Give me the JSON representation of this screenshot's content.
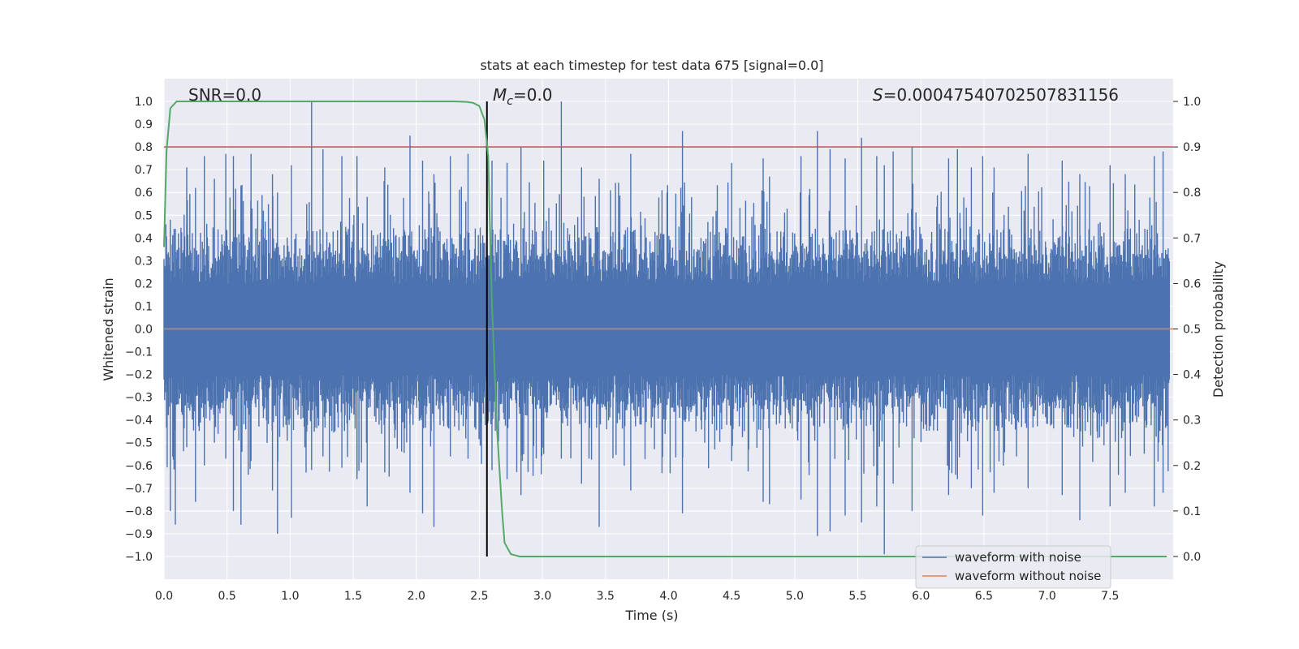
{
  "chart_data": {
    "type": "line",
    "title": "stats at each timestep for test data 675 [signal=0.0]",
    "xlabel": "Time (s)",
    "ylabel": "Whitened strain",
    "y2label": "Detection probability",
    "xlim": [
      0.0,
      8.0
    ],
    "ylim": [
      -1.1,
      1.1
    ],
    "y2lim": [
      -0.05,
      1.05
    ],
    "x_ticks": [
      "0.0",
      "0.5",
      "1.0",
      "1.5",
      "2.0",
      "2.5",
      "3.0",
      "3.5",
      "4.0",
      "4.5",
      "5.0",
      "5.5",
      "6.0",
      "6.5",
      "7.0",
      "7.5"
    ],
    "y_ticks": [
      "1.0",
      "0.9",
      "0.8",
      "0.7",
      "0.6",
      "0.5",
      "0.4",
      "0.3",
      "0.2",
      "0.1",
      "0.0",
      "−0.1",
      "−0.2",
      "−0.3",
      "−0.4",
      "−0.5",
      "−0.6",
      "−0.7",
      "−0.8",
      "−0.9",
      "−1.0"
    ],
    "y2_ticks": [
      "1.0",
      "0.9",
      "0.8",
      "0.7",
      "0.6",
      "0.5",
      "0.4",
      "0.3",
      "0.2",
      "0.1",
      "0.0"
    ],
    "grid": true,
    "legend_position": "lower-right",
    "annotations": {
      "snr": "SNR=0.0",
      "mc_symbol": "M",
      "mc_subscript": "c",
      "mc_value": "=0.0",
      "s_symbol": "S",
      "s_value": "=0.00047540702507831156"
    },
    "threshold_line": {
      "y": 0.8,
      "color": "#c44e52"
    },
    "event_line": {
      "x": 2.56,
      "color": "#000000"
    },
    "series": [
      {
        "name": "waveform with noise",
        "color": "#4c72b0",
        "axis": "left",
        "description_points": [
          [
            0.05,
            0.48,
            -0.8
          ],
          [
            0.09,
            0.44,
            -0.86
          ],
          [
            0.18,
            0.71,
            -0.52
          ],
          [
            0.25,
            0.62,
            -0.76
          ],
          [
            0.32,
            0.76,
            -0.6
          ],
          [
            0.4,
            0.66,
            -0.5
          ],
          [
            0.49,
            0.77,
            -0.57
          ],
          [
            0.55,
            0.76,
            -0.8
          ],
          [
            0.61,
            0.63,
            -0.86
          ],
          [
            0.69,
            0.77,
            -0.58
          ],
          [
            0.86,
            0.68,
            -0.71
          ],
          [
            0.9,
            0.6,
            -0.9
          ],
          [
            1.01,
            0.72,
            -0.83
          ],
          [
            1.17,
            1.0,
            -0.62
          ],
          [
            1.26,
            0.79,
            -0.56
          ],
          [
            1.41,
            0.76,
            -0.61
          ],
          [
            1.53,
            0.76,
            -0.66
          ],
          [
            1.61,
            0.58,
            -0.78
          ],
          [
            1.75,
            0.71,
            -0.63
          ],
          [
            1.95,
            0.85,
            -0.72
          ],
          [
            2.05,
            0.74,
            -0.81
          ],
          [
            2.14,
            0.68,
            -0.87
          ],
          [
            2.27,
            0.76,
            -0.56
          ],
          [
            2.41,
            0.77,
            -0.57
          ],
          [
            2.6,
            0.74,
            -0.62
          ],
          [
            2.72,
            0.73,
            -0.66
          ],
          [
            2.83,
            0.8,
            -0.73
          ],
          [
            3.01,
            0.74,
            -0.55
          ],
          [
            3.15,
            1.0,
            -0.57
          ],
          [
            3.31,
            0.71,
            -0.68
          ],
          [
            3.45,
            0.66,
            -0.87
          ],
          [
            3.7,
            0.77,
            -0.71
          ],
          [
            4.11,
            0.87,
            -0.81
          ],
          [
            4.5,
            0.73,
            -0.58
          ],
          [
            4.75,
            0.75,
            -0.76
          ],
          [
            4.8,
            0.67,
            -0.77
          ],
          [
            5.05,
            0.76,
            -0.75
          ],
          [
            5.18,
            0.87,
            -0.91
          ],
          [
            5.28,
            0.79,
            -0.89
          ],
          [
            5.4,
            0.75,
            -0.82
          ],
          [
            5.53,
            0.84,
            -0.85
          ],
          [
            5.65,
            0.76,
            -0.78
          ],
          [
            5.71,
            0.72,
            -0.99
          ],
          [
            5.78,
            0.78,
            -0.68
          ],
          [
            5.93,
            0.8,
            -0.8
          ],
          [
            6.22,
            0.75,
            -0.73
          ],
          [
            6.29,
            0.79,
            -0.66
          ],
          [
            6.4,
            0.71,
            -0.7
          ],
          [
            6.49,
            0.76,
            -0.82
          ],
          [
            6.58,
            0.71,
            -0.72
          ],
          [
            6.85,
            0.77,
            -0.7
          ],
          [
            7.12,
            0.74,
            -0.73
          ],
          [
            7.26,
            0.68,
            -0.84
          ],
          [
            7.5,
            0.72,
            -0.78
          ],
          [
            7.62,
            0.68,
            -0.72
          ],
          [
            7.85,
            0.76,
            -0.78
          ],
          [
            7.92,
            0.78,
            -0.72
          ]
        ]
      },
      {
        "name": "waveform without noise",
        "color": "#dd8452",
        "axis": "left",
        "x": [
          0.0,
          8.0
        ],
        "y": [
          0.0,
          0.0
        ]
      },
      {
        "name": "",
        "color": "#55a868",
        "axis": "right",
        "x": [
          0.0,
          0.02,
          0.05,
          0.1,
          0.2,
          0.5,
          1.0,
          1.5,
          2.0,
          2.3,
          2.4,
          2.45,
          2.5,
          2.54,
          2.57,
          2.6,
          2.64,
          2.68,
          2.7,
          2.75,
          2.82,
          2.88,
          3.0,
          4.0,
          5.0,
          6.0,
          7.0,
          7.95
        ],
        "y": [
          0.68,
          0.89,
          0.985,
          1.0,
          1.0,
          1.0,
          1.0,
          1.0,
          1.0,
          1.0,
          0.999,
          0.997,
          0.99,
          0.96,
          0.88,
          0.55,
          0.28,
          0.1,
          0.03,
          0.005,
          0.0,
          0.0,
          0.0,
          0.0,
          0.0,
          0.0,
          0.0,
          0.0
        ]
      }
    ]
  }
}
